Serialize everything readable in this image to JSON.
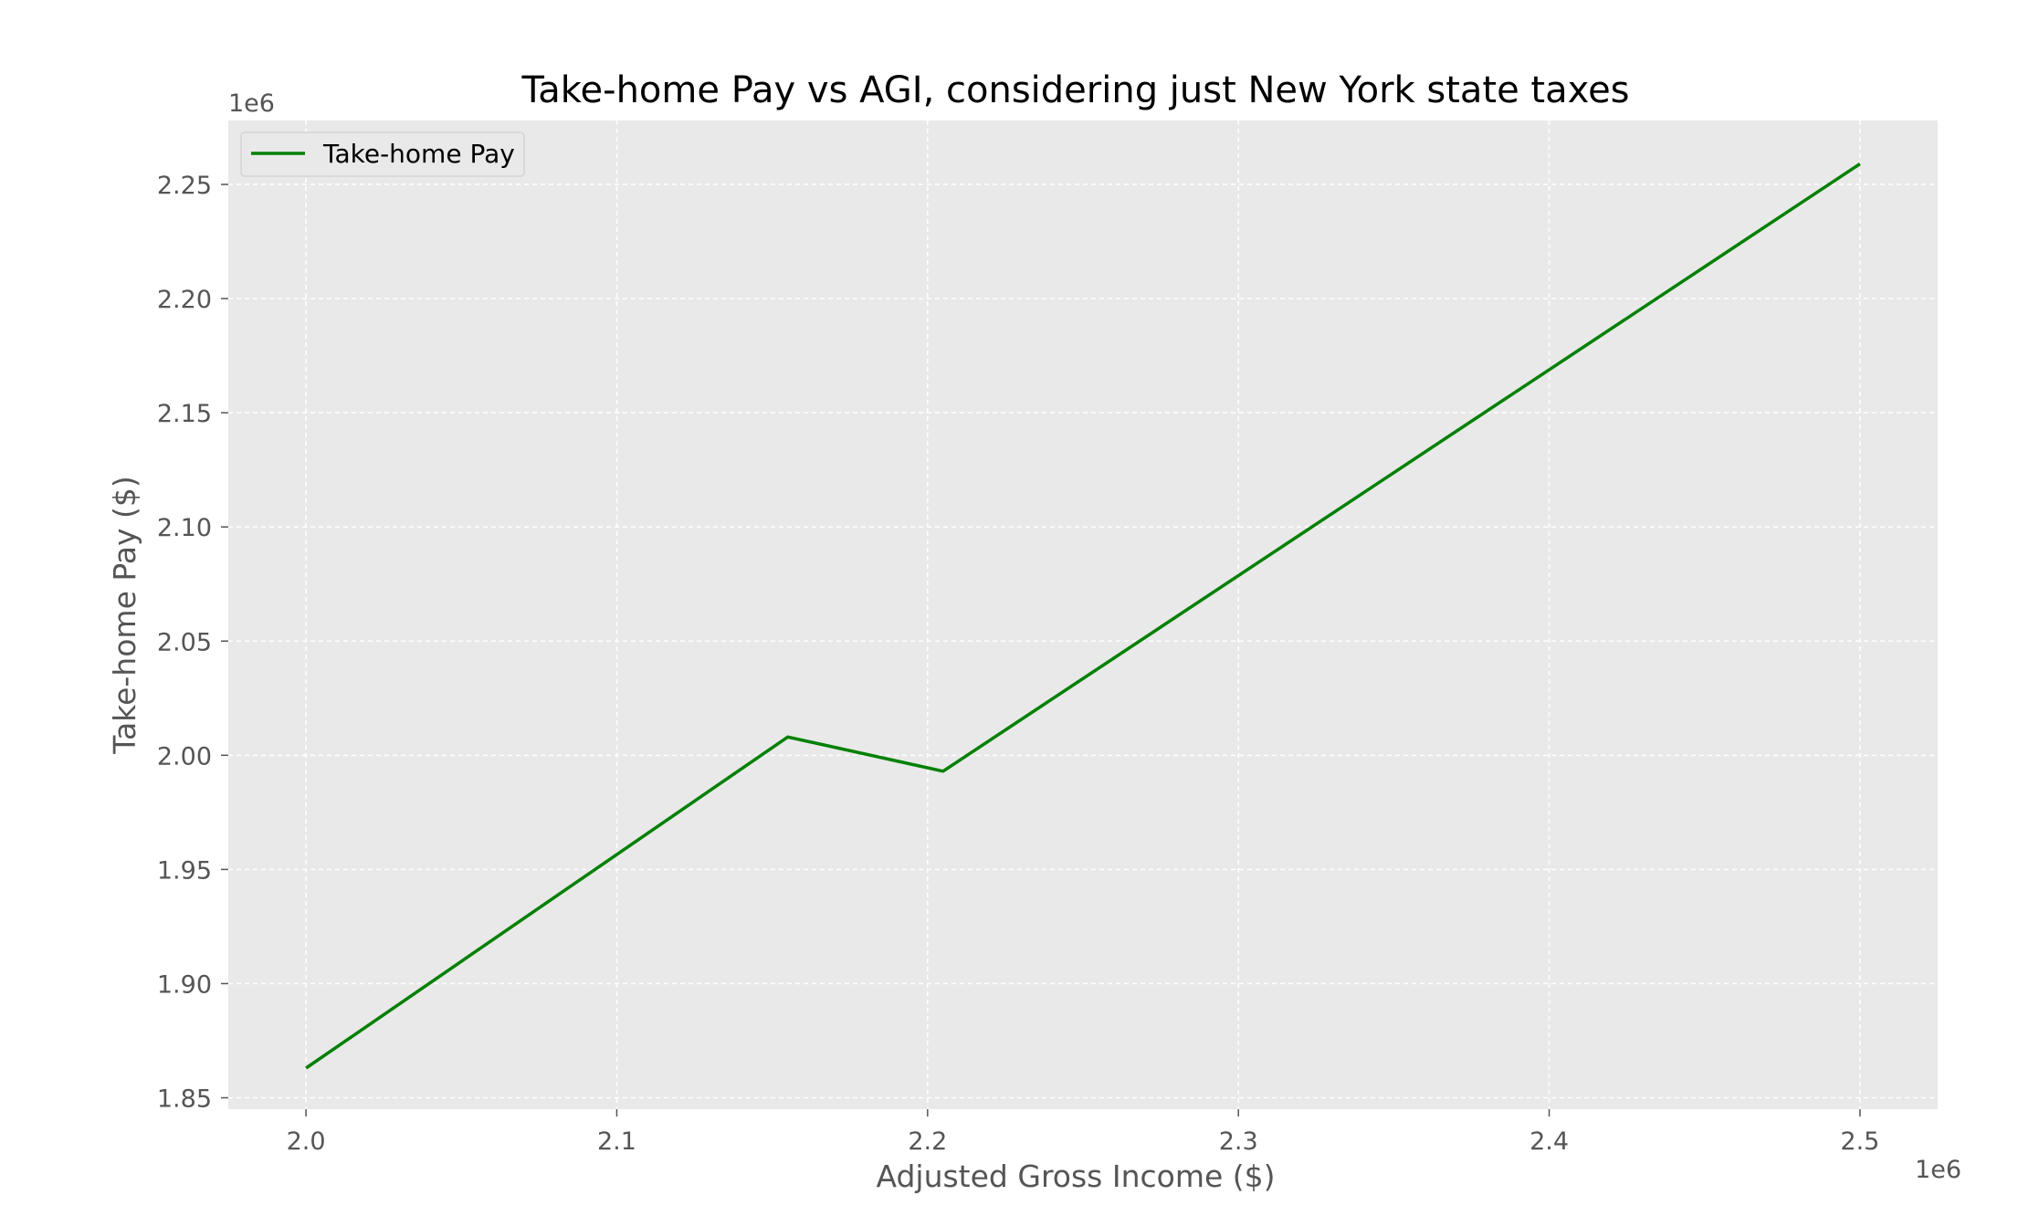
{
  "chart_data": {
    "type": "line",
    "title": "Take-home Pay vs AGI, considering just New York state taxes",
    "xlabel": "Adjusted Gross Income ($)",
    "ylabel": "Take-home Pay ($)",
    "x_offset_label": "1e6",
    "y_offset_label": "1e6",
    "x_ticks": [
      2.0,
      2.1,
      2.2,
      2.3,
      2.4,
      2.5
    ],
    "x_tick_labels": [
      "2.0",
      "2.1",
      "2.2",
      "2.3",
      "2.4",
      "2.5"
    ],
    "y_ticks": [
      1.85,
      1.9,
      1.95,
      2.0,
      2.05,
      2.1,
      2.15,
      2.2,
      2.25
    ],
    "y_tick_labels": [
      "1.85",
      "1.90",
      "1.95",
      "2.00",
      "2.05",
      "2.10",
      "2.15",
      "2.20",
      "2.25"
    ],
    "xlim": [
      1.975,
      2.525
    ],
    "ylim": [
      1.845,
      2.278
    ],
    "grid": true,
    "legend_position": "top-left",
    "series": [
      {
        "name": "Take-home Pay",
        "color": "#008000",
        "x": [
          2.0,
          2.155,
          2.205,
          2.5
        ],
        "y": [
          1.863,
          2.008,
          1.993,
          2.259
        ]
      }
    ],
    "colors": {
      "plot_background": "#e9e9e9",
      "grid": "#ffffff",
      "line": "#008000"
    }
  }
}
